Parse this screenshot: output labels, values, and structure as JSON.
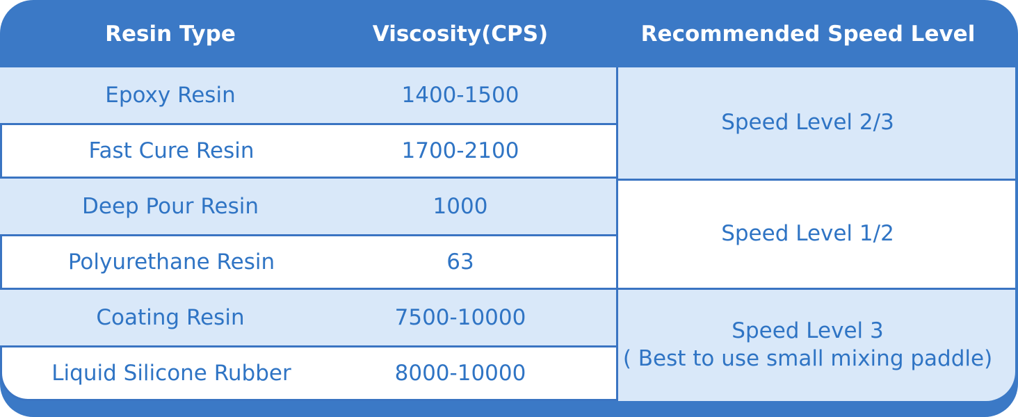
{
  "header": {
    "columns": [
      "Resin Type",
      "Viscosity(CPS)",
      "Recommended Speed Level"
    ]
  },
  "rows": [
    {
      "resin": "Epoxy Resin",
      "viscosity": "1400-1500"
    },
    {
      "resin": "Fast Cure Resin",
      "viscosity": "1700-2100"
    },
    {
      "resin": "Deep Pour Resin",
      "viscosity": "1000"
    },
    {
      "resin": "Polyurethane Resin",
      "viscosity": "63"
    },
    {
      "resin": "Coating Resin",
      "viscosity": "7500-10000"
    },
    {
      "resin": "Liquid Silicone Rubber",
      "viscosity": "8000-10000"
    }
  ],
  "speed_groups": [
    {
      "label": "Speed Level 2/3"
    },
    {
      "label": "Speed Level 1/2"
    },
    {
      "label": "Speed Level 3",
      "note": "( Best to use small mixing paddle)"
    }
  ],
  "colors": {
    "frame_blue": "#3B79C6",
    "border_blue": "#3A74C2",
    "light_blue": "#D9E8F9",
    "text_blue": "#2F74C4",
    "header_text": "#FFFFFF"
  },
  "chart_data": {
    "type": "table",
    "title": "Resin viscosity and recommended mixing speed levels",
    "columns": [
      "Resin Type",
      "Viscosity(CPS)",
      "Recommended Speed Level"
    ],
    "rows": [
      [
        "Epoxy Resin",
        "1400-1500",
        "Speed Level 2/3"
      ],
      [
        "Fast Cure Resin",
        "1700-2100",
        "Speed Level 2/3"
      ],
      [
        "Deep Pour Resin",
        "1000",
        "Speed Level 1/2"
      ],
      [
        "Polyurethane Resin",
        "63",
        "Speed Level 1/2"
      ],
      [
        "Coating Resin",
        "7500-10000",
        "Speed Level 3 ( Best to use small mixing paddle)"
      ],
      [
        "Liquid Silicone Rubber",
        "8000-10000",
        "Speed Level 3 ( Best to use small mixing paddle)"
      ]
    ],
    "merged_cells": [
      {
        "column": "Recommended Speed Level",
        "rowspan_rows": [
          0,
          1
        ],
        "text": "Speed Level 2/3"
      },
      {
        "column": "Recommended Speed Level",
        "rowspan_rows": [
          2,
          3
        ],
        "text": "Speed Level 1/2"
      },
      {
        "column": "Recommended Speed Level",
        "rowspan_rows": [
          4,
          5
        ],
        "text": "Speed Level 3 ( Best to use small mixing paddle)"
      }
    ],
    "layout": {
      "header_background": "#3B79C6",
      "row_stripe_colors": [
        "#D9E8F9",
        "#FFFFFF"
      ],
      "grid": true
    }
  }
}
